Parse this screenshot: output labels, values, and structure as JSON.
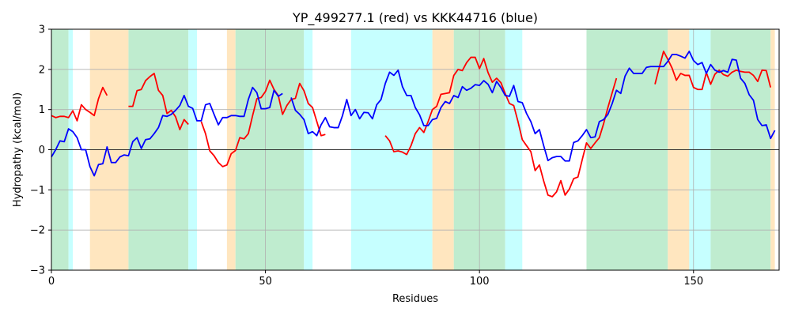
{
  "chart_data": {
    "type": "line",
    "title": "YP_499277.1 (red) vs KKK44716 (blue)",
    "xlabel": "Residues",
    "ylabel": "Hydropathy (kcal/mol)",
    "xlim": [
      0,
      170
    ],
    "ylim": [
      -3,
      3
    ],
    "xticks": [
      0,
      50,
      100,
      150
    ],
    "yticks": [
      -3,
      -2,
      -1,
      0,
      1,
      2,
      3
    ],
    "grid": true,
    "zero_line": true,
    "band_colors": {
      "green": "#bfeccf",
      "cyan": "#c6ffff",
      "orange": "#ffe6bf"
    },
    "bands": [
      {
        "x0": 0,
        "x1": 4,
        "color": "green"
      },
      {
        "x0": 4,
        "x1": 5,
        "color": "cyan"
      },
      {
        "x0": 9,
        "x1": 18,
        "color": "orange"
      },
      {
        "x0": 18,
        "x1": 32,
        "color": "green"
      },
      {
        "x0": 32,
        "x1": 34,
        "color": "cyan"
      },
      {
        "x0": 41,
        "x1": 43,
        "color": "orange"
      },
      {
        "x0": 43,
        "x1": 59,
        "color": "green"
      },
      {
        "x0": 59,
        "x1": 61,
        "color": "cyan"
      },
      {
        "x0": 70,
        "x1": 89,
        "color": "cyan"
      },
      {
        "x0": 89,
        "x1": 94,
        "color": "orange"
      },
      {
        "x0": 94,
        "x1": 106,
        "color": "green"
      },
      {
        "x0": 106,
        "x1": 110,
        "color": "cyan"
      },
      {
        "x0": 125,
        "x1": 144,
        "color": "green"
      },
      {
        "x0": 144,
        "x1": 149,
        "color": "orange"
      },
      {
        "x0": 149,
        "x1": 154,
        "color": "cyan"
      },
      {
        "x0": 154,
        "x1": 168,
        "color": "green"
      },
      {
        "x0": 168,
        "x1": 169,
        "color": "orange"
      }
    ],
    "series": [
      {
        "color": "#ff0000",
        "segments": [
          {
            "start": 0,
            "values": [
              0.85,
              0.8,
              0.83,
              0.83,
              0.8,
              0.97,
              0.72,
              1.12,
              1.0,
              0.93,
              0.85,
              1.27,
              1.55,
              1.35
            ]
          },
          {
            "start": 18,
            "values": [
              1.08,
              1.08,
              1.47,
              1.5,
              1.72,
              1.82,
              1.9,
              1.48,
              1.35,
              0.9,
              0.98,
              0.82,
              0.5,
              0.75,
              0.63
            ]
          },
          {
            "start": 35,
            "values": [
              0.7,
              0.4,
              -0.03,
              -0.15,
              -0.32,
              -0.42,
              -0.38,
              -0.1,
              -0.02,
              0.3,
              0.27,
              0.4,
              0.85,
              1.27,
              1.3,
              1.45,
              1.73,
              1.5,
              1.35,
              0.88,
              1.1,
              1.25,
              1.28,
              1.65,
              1.47,
              1.15,
              1.05,
              0.7,
              0.35,
              0.38
            ]
          },
          {
            "start": 78,
            "values": [
              0.35,
              0.22,
              -0.05,
              -0.03,
              -0.06,
              -0.12,
              0.1,
              0.4,
              0.55,
              0.43,
              0.7,
              1.0,
              1.08,
              1.38,
              1.4,
              1.42,
              1.85,
              2.0,
              1.97,
              2.17,
              2.3,
              2.3,
              2.02,
              2.27,
              1.92,
              1.68,
              1.78,
              1.67,
              1.4,
              1.15,
              1.1,
              0.7,
              0.25,
              0.1,
              -0.05,
              -0.52,
              -0.38,
              -0.78,
              -1.13,
              -1.17,
              -1.05,
              -0.77,
              -1.13,
              -0.98,
              -0.72,
              -0.68,
              -0.25,
              0.17,
              0.03,
              0.17,
              0.3,
              0.65,
              1.05,
              1.42,
              1.78
            ]
          },
          {
            "start": 141,
            "values": [
              1.63,
              2.05,
              2.45,
              2.25,
              2.03,
              1.73,
              1.9,
              1.85,
              1.85,
              1.55,
              1.5,
              1.5,
              1.92,
              1.63,
              1.88,
              1.98,
              1.87,
              1.83,
              1.93,
              1.98,
              1.95,
              1.93,
              1.93,
              1.85,
              1.7,
              1.98,
              1.97,
              1.55
            ]
          }
        ]
      },
      {
        "color": "#0000ff",
        "segments": [
          {
            "start": 0,
            "values": [
              -0.18,
              0.0,
              0.22,
              0.2,
              0.52,
              0.45,
              0.3,
              0.0,
              0.0,
              -0.42,
              -0.65,
              -0.37,
              -0.35,
              0.07,
              -0.32,
              -0.32,
              -0.18,
              -0.13,
              -0.15,
              0.2,
              0.3,
              0.03,
              0.25,
              0.27,
              0.4,
              0.55,
              0.85,
              0.83,
              0.88,
              0.98,
              1.1,
              1.35,
              1.08,
              1.03,
              0.72,
              0.72,
              1.12,
              1.15,
              0.88,
              0.62,
              0.8,
              0.8,
              0.85,
              0.85,
              0.83,
              0.83,
              1.25,
              1.55,
              1.42,
              1.02,
              1.02,
              1.05,
              1.48,
              1.33,
              1.4
            ]
          },
          {
            "start": 56,
            "values": [
              1.3,
              0.98,
              0.88,
              0.75,
              0.4,
              0.45,
              0.35,
              0.62,
              0.8,
              0.57,
              0.55,
              0.55,
              0.85,
              1.25,
              0.85,
              1.0,
              0.77,
              0.93,
              0.92,
              0.77,
              1.12,
              1.25,
              1.65,
              1.93,
              1.85,
              1.98,
              1.57,
              1.35,
              1.35,
              1.05,
              0.87,
              0.6,
              0.6,
              0.75,
              0.78,
              1.05,
              1.2,
              1.15,
              1.35,
              1.3,
              1.57,
              1.48,
              1.53,
              1.62,
              1.6,
              1.72,
              1.63,
              1.42,
              1.7,
              1.55,
              1.35,
              1.33,
              1.6,
              1.2,
              1.17,
              0.9,
              0.7,
              0.4,
              0.5,
              0.1,
              -0.27,
              -0.2,
              -0.17,
              -0.17,
              -0.28,
              -0.28,
              0.18,
              0.22,
              0.35,
              0.5,
              0.3,
              0.32,
              0.7,
              0.75,
              0.88,
              1.15,
              1.48,
              1.4,
              1.83,
              2.03,
              1.9,
              1.9,
              1.9,
              2.05,
              2.07,
              2.07,
              2.07,
              2.07,
              2.2,
              2.37,
              2.37,
              2.33,
              2.28,
              2.45,
              2.22,
              2.12,
              2.17,
              1.9,
              2.12,
              1.98,
              1.93,
              1.97,
              1.93,
              2.25,
              2.23,
              1.78,
              1.65,
              1.37,
              1.23,
              0.75,
              0.6,
              0.62,
              0.28,
              0.48
            ]
          }
        ]
      }
    ]
  }
}
